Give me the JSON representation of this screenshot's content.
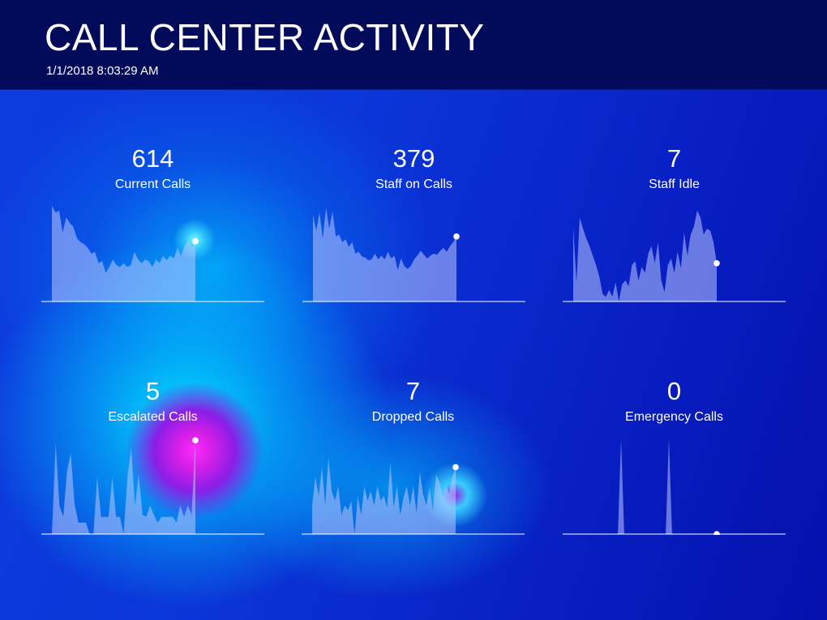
{
  "header": {
    "title": "CALL CENTER ACTIVITY",
    "timestamp": "1/1/2018 8:03:29 AM"
  },
  "colors": {
    "header_bg": "#020a5a",
    "area_fill": "#b9c6ff",
    "baseline": "#ffffff",
    "marker": "#ffffff"
  },
  "chart_data": [
    {
      "type": "area",
      "label": "Current Calls",
      "value": "614",
      "ylim": [
        0,
        1
      ],
      "values": [
        1.0,
        0.93,
        0.95,
        0.72,
        0.88,
        0.82,
        0.78,
        0.66,
        0.62,
        0.6,
        0.56,
        0.5,
        0.52,
        0.4,
        0.42,
        0.3,
        0.36,
        0.44,
        0.38,
        0.36,
        0.4,
        0.36,
        0.38,
        0.52,
        0.44,
        0.4,
        0.44,
        0.42,
        0.36,
        0.44,
        0.4,
        0.48,
        0.43,
        0.48,
        0.45,
        0.56,
        0.48,
        0.58,
        0.64,
        0.56,
        0.63
      ]
    },
    {
      "type": "area",
      "label": "Staff on Calls",
      "value": "379",
      "ylim": [
        0,
        1
      ],
      "values": [
        0.9,
        0.74,
        0.93,
        0.66,
        0.98,
        0.76,
        0.94,
        0.68,
        0.7,
        0.62,
        0.65,
        0.57,
        0.62,
        0.5,
        0.52,
        0.47,
        0.46,
        0.43,
        0.44,
        0.5,
        0.44,
        0.48,
        0.44,
        0.52,
        0.45,
        0.48,
        0.33,
        0.45,
        0.37,
        0.34,
        0.37,
        0.44,
        0.48,
        0.53,
        0.49,
        0.45,
        0.48,
        0.5,
        0.49,
        0.53,
        0.56,
        0.52,
        0.58,
        0.62,
        0.68
      ]
    },
    {
      "type": "area",
      "label": "Staff Idle",
      "value": "7",
      "ylim": [
        0,
        1
      ],
      "values": [
        0.78,
        0.2,
        0.88,
        0.76,
        0.66,
        0.58,
        0.48,
        0.38,
        0.26,
        0.08,
        0.05,
        0.12,
        0.05,
        0.2,
        0.0,
        0.18,
        0.22,
        0.16,
        0.38,
        0.42,
        0.22,
        0.36,
        0.3,
        0.5,
        0.58,
        0.4,
        0.62,
        0.22,
        0.1,
        0.38,
        0.45,
        0.3,
        0.52,
        0.35,
        0.72,
        0.48,
        0.7,
        0.78,
        0.95,
        0.88,
        0.7,
        0.76,
        0.74,
        0.62,
        0.4
      ]
    },
    {
      "type": "area",
      "label": "Escalated Calls",
      "value": "5",
      "ylim": [
        0,
        1
      ],
      "values": [
        0.0,
        0.95,
        0.3,
        0.18,
        0.65,
        0.85,
        0.32,
        0.12,
        0.12,
        0.12,
        0.0,
        0.0,
        0.6,
        0.18,
        0.18,
        0.18,
        0.6,
        0.18,
        0.18,
        0.0,
        0.6,
        0.9,
        0.3,
        0.62,
        0.2,
        0.18,
        0.3,
        0.2,
        0.12,
        0.18,
        0.18,
        0.18,
        0.18,
        0.12,
        0.3,
        0.18,
        0.3,
        0.2,
        0.98
      ]
    },
    {
      "type": "area",
      "label": "Dropped Calls",
      "value": "7",
      "ylim": [
        0,
        1
      ],
      "values": [
        0.3,
        0.6,
        0.4,
        0.7,
        0.3,
        0.8,
        0.45,
        0.35,
        0.5,
        0.2,
        0.3,
        0.25,
        0.35,
        0.0,
        0.4,
        0.2,
        0.5,
        0.35,
        0.45,
        0.3,
        0.5,
        0.35,
        0.4,
        0.28,
        0.75,
        0.28,
        0.5,
        0.2,
        0.38,
        0.5,
        0.3,
        0.5,
        0.22,
        0.65,
        0.42,
        0.3,
        0.48,
        0.25,
        0.62,
        0.55,
        0.4,
        0.5,
        0.42,
        0.6,
        0.7
      ]
    },
    {
      "type": "area",
      "label": "Emergency Calls",
      "value": "0",
      "ylim": [
        0,
        1
      ],
      "values": [
        0,
        0,
        0,
        0,
        0,
        0,
        0,
        0,
        0,
        0,
        0,
        0,
        0,
        0,
        0,
        1.0,
        0,
        0,
        0,
        0,
        0,
        0,
        0,
        0,
        0,
        0,
        0,
        0,
        0,
        0,
        1.0,
        0,
        0,
        0,
        0,
        0,
        0,
        0,
        0,
        0,
        0,
        0,
        0,
        0,
        0,
        0
      ]
    }
  ]
}
